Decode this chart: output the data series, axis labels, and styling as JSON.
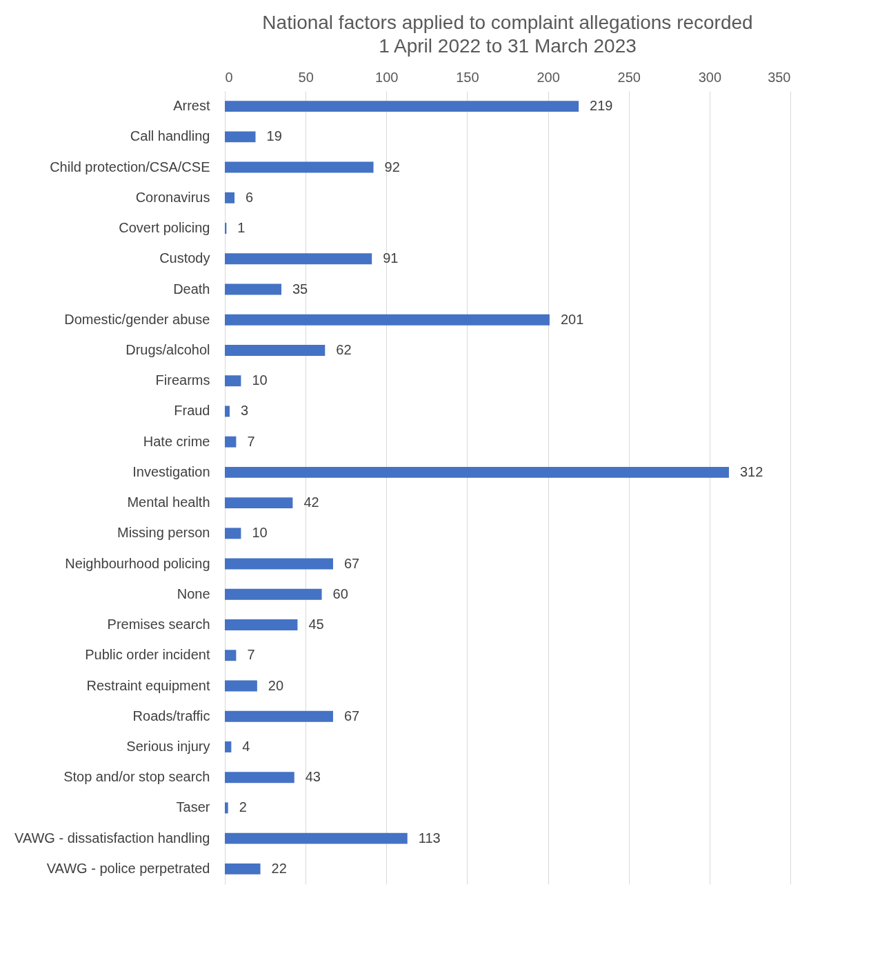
{
  "chart_data": {
    "type": "bar",
    "orientation": "horizontal",
    "title": "National factors applied to complaint allegations recorded",
    "subtitle": "1 April 2022 to 31 March 2023",
    "categories": [
      "Arrest",
      "Call handling",
      "Child protection/CSA/CSE",
      "Coronavirus",
      "Covert policing",
      "Custody",
      "Death",
      "Domestic/gender abuse",
      "Drugs/alcohol",
      "Firearms",
      "Fraud",
      "Hate crime",
      "Investigation",
      "Mental health",
      "Missing person",
      "Neighbourhood policing",
      "None",
      "Premises search",
      "Public order incident",
      "Restraint equipment",
      "Roads/traffic",
      "Serious injury",
      "Stop and/or stop search",
      "Taser",
      "VAWG - dissatisfaction handling",
      "VAWG - police perpetrated"
    ],
    "values": [
      219,
      19,
      92,
      6,
      1,
      91,
      35,
      201,
      62,
      10,
      3,
      7,
      312,
      42,
      10,
      67,
      60,
      45,
      7,
      20,
      67,
      4,
      43,
      2,
      113,
      22
    ],
    "color": "#4472c4",
    "xlim": [
      0,
      350
    ],
    "xticks": [
      0,
      50,
      100,
      150,
      200,
      250,
      300,
      350
    ],
    "grid": "x",
    "data_labels": true
  }
}
